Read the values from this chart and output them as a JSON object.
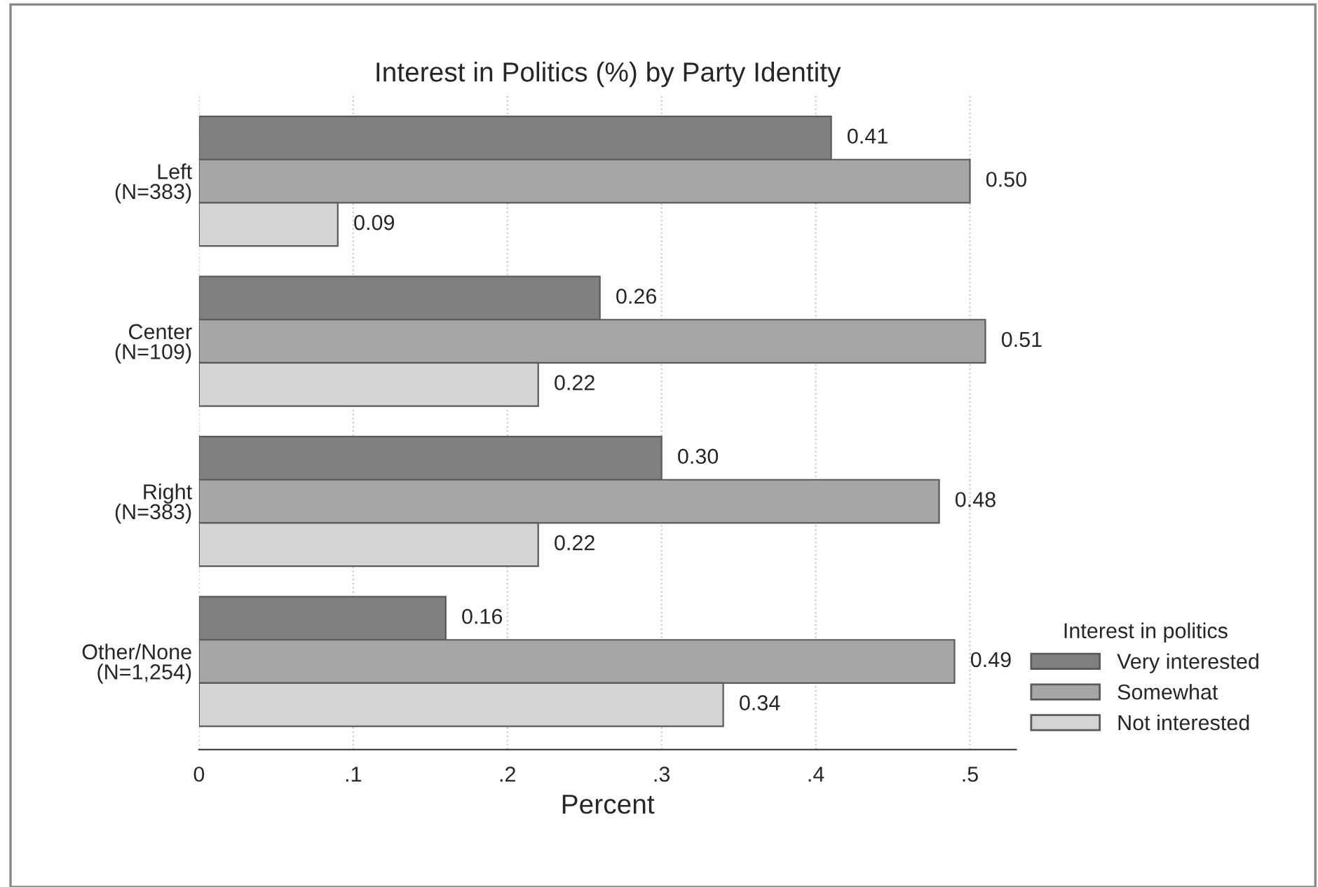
{
  "chart_data": {
    "type": "bar",
    "orientation": "horizontal",
    "title": "Interest in Politics (%) by Party Identity",
    "xlabel": "Percent",
    "categories": [
      "Left\n(N=383)",
      "Center\n(N=109)",
      "Right\n(N=383)",
      "Other/None\n(N=1,254)"
    ],
    "series": [
      {
        "name": "Very interested",
        "color": "#808080",
        "values": [
          0.41,
          0.26,
          0.3,
          0.16
        ]
      },
      {
        "name": "Somewhat",
        "color": "#a6a6a6",
        "values": [
          0.5,
          0.51,
          0.48,
          0.49
        ]
      },
      {
        "name": "Not interested",
        "color": "#d4d4d4",
        "values": [
          0.09,
          0.22,
          0.22,
          0.34
        ]
      }
    ],
    "xlim": [
      0,
      0.53
    ],
    "xticks": [
      0,
      {
        "value": 0.1,
        "label": ".1"
      },
      {
        "value": 0.2,
        "label": ".2"
      },
      {
        "value": 0.3,
        "label": ".3"
      },
      {
        "value": 0.4,
        "label": ".4"
      },
      {
        "value": 0.5,
        "label": ".5"
      }
    ],
    "value_labels": [
      [
        "0.41",
        "0.26",
        "0.30",
        "0.16"
      ],
      [
        "0.50",
        "0.51",
        "0.48",
        "0.49"
      ],
      [
        "0.09",
        "0.22",
        "0.22",
        "0.34"
      ]
    ],
    "legend_title": "Interest in politics",
    "legend": "bottom right",
    "grid": "x"
  }
}
